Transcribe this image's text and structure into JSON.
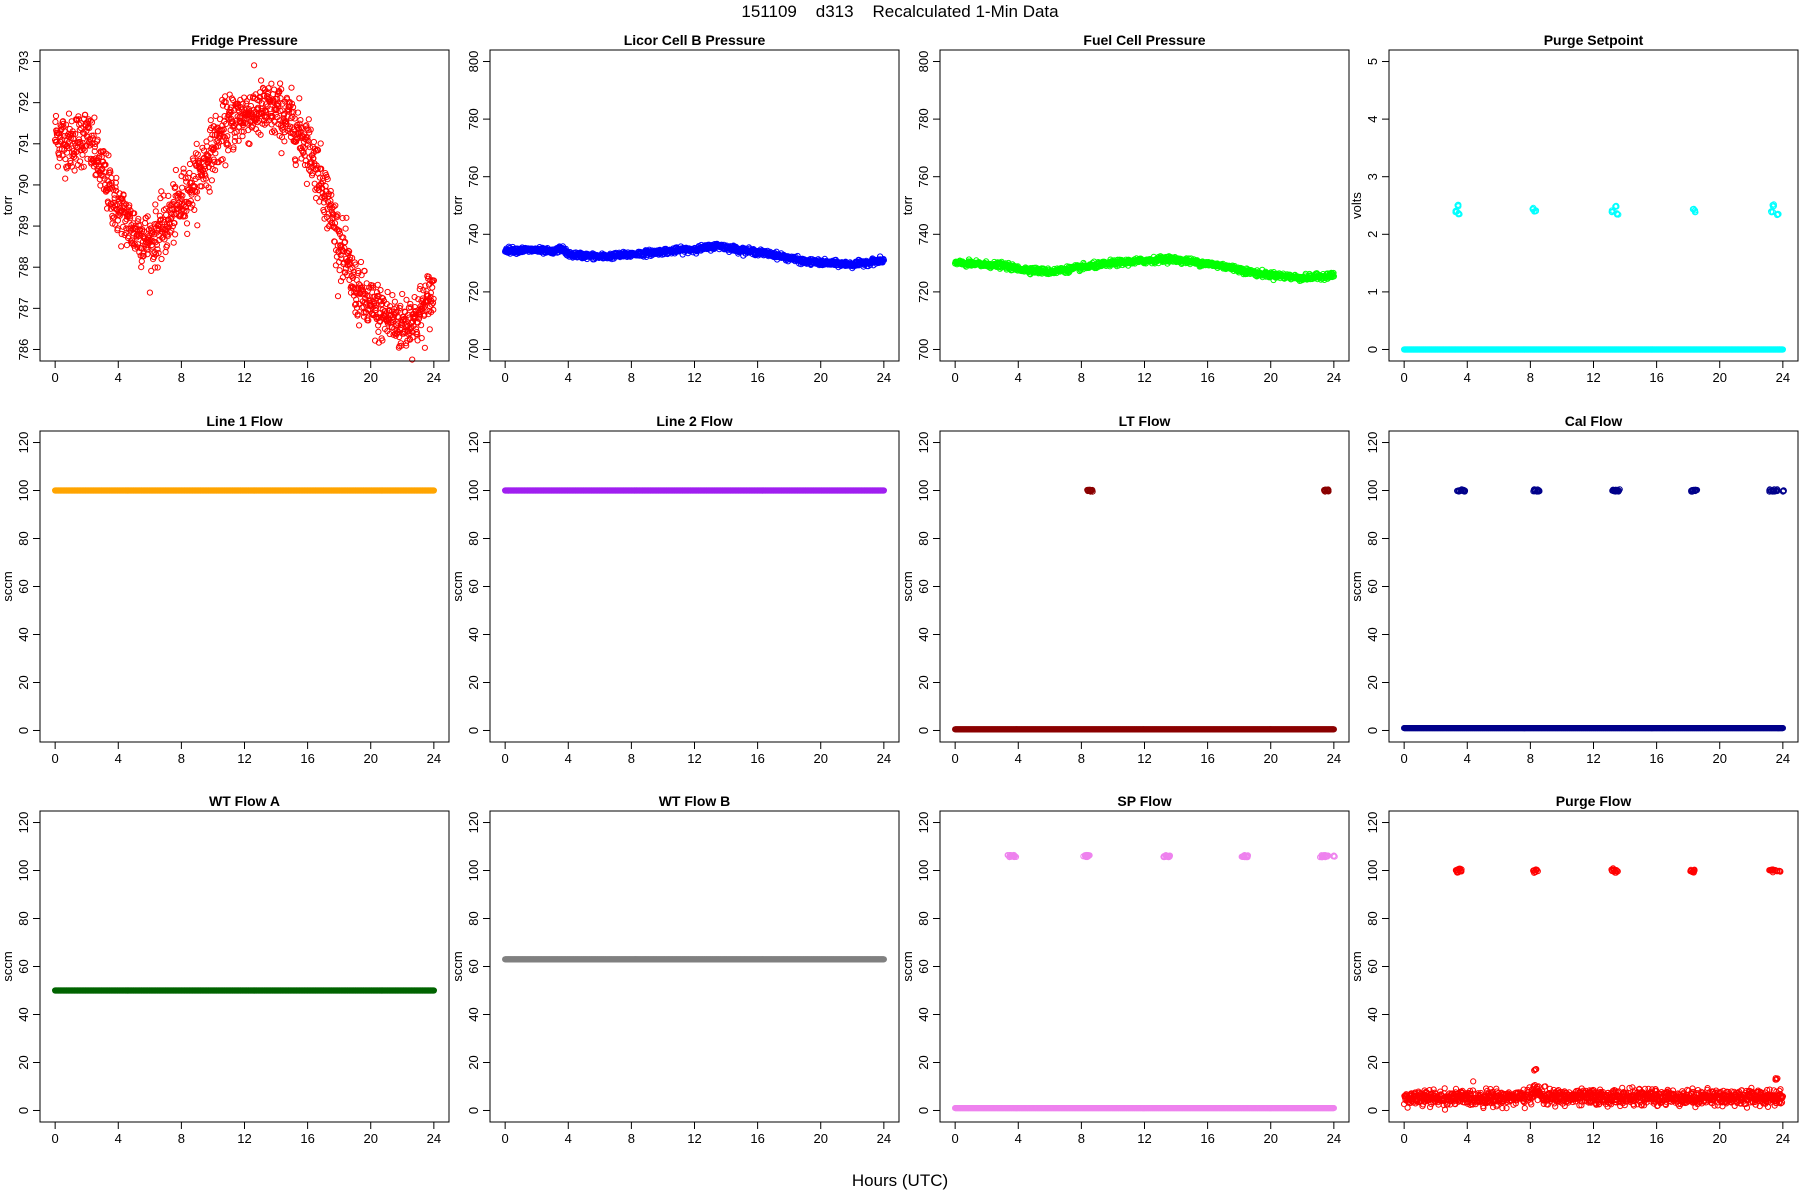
{
  "title": "151109    d313    Recalculated 1-Min Data",
  "xlabel": "Hours (UTC)",
  "chart_data": [
    {
      "type": "scatter",
      "title": "Fridge Pressure",
      "ylabel": "torr",
      "color": "#ff0000",
      "xlim": [
        0,
        24
      ],
      "ylim": [
        786,
        793
      ],
      "xticks": [
        0,
        4,
        8,
        12,
        16,
        20,
        24
      ],
      "yticks": [
        786,
        787,
        788,
        789,
        790,
        791,
        792,
        793
      ],
      "noise": 0.35,
      "series": [
        {
          "curve": [
            [
              0,
              791.2
            ],
            [
              1,
              791.0
            ],
            [
              2,
              791.2
            ],
            [
              3,
              790.3
            ],
            [
              4,
              789.4
            ],
            [
              5,
              788.9
            ],
            [
              6,
              788.6
            ],
            [
              7,
              789.0
            ],
            [
              8,
              789.6
            ],
            [
              9,
              790.2
            ],
            [
              10,
              790.9
            ],
            [
              11,
              791.5
            ],
            [
              12,
              791.7
            ],
            [
              13,
              791.8
            ],
            [
              14,
              791.8
            ],
            [
              15,
              791.5
            ],
            [
              16,
              791.0
            ],
            [
              17,
              790.0
            ],
            [
              18,
              788.6
            ],
            [
              19,
              787.5
            ],
            [
              20,
              787.0
            ],
            [
              21,
              786.8
            ],
            [
              22,
              786.6
            ],
            [
              23,
              786.8
            ],
            [
              24,
              787.4
            ]
          ],
          "n": 1400
        }
      ]
    },
    {
      "type": "scatter",
      "title": "Licor Cell B Pressure",
      "ylabel": "torr",
      "color": "#0000ff",
      "xlim": [
        0,
        24
      ],
      "ylim": [
        700,
        800
      ],
      "xticks": [
        0,
        4,
        8,
        12,
        16,
        20,
        24
      ],
      "yticks": [
        700,
        720,
        740,
        760,
        780,
        800
      ],
      "noise": 0.5,
      "series": [
        {
          "curve": [
            [
              0,
              734.5
            ],
            [
              2,
              734.5
            ],
            [
              3,
              733.8
            ],
            [
              3.6,
              735.2
            ],
            [
              4,
              733
            ],
            [
              6,
              732.2
            ],
            [
              8,
              733
            ],
            [
              10,
              734
            ],
            [
              12,
              734.8
            ],
            [
              13.5,
              736
            ],
            [
              15,
              734.5
            ],
            [
              17,
              733
            ],
            [
              19,
              730.5
            ],
            [
              22,
              729.5
            ],
            [
              24,
              731
            ]
          ],
          "n": 1200
        }
      ]
    },
    {
      "type": "scatter",
      "title": "Fuel Cell Pressure",
      "ylabel": "torr",
      "color": "#00ff00",
      "xlim": [
        0,
        24
      ],
      "ylim": [
        700,
        800
      ],
      "xticks": [
        0,
        4,
        8,
        12,
        16,
        20,
        24
      ],
      "yticks": [
        700,
        720,
        740,
        760,
        780,
        800
      ],
      "noise": 0.5,
      "series": [
        {
          "curve": [
            [
              0,
              730
            ],
            [
              3,
              729.2
            ],
            [
              4,
              728
            ],
            [
              6,
              727
            ],
            [
              8,
              728.5
            ],
            [
              10,
              730
            ],
            [
              12,
              730.8
            ],
            [
              13.5,
              731.5
            ],
            [
              15,
              730.5
            ],
            [
              17,
              729
            ],
            [
              19,
              726.5
            ],
            [
              22,
              724.8
            ],
            [
              24,
              725.8
            ]
          ],
          "n": 1200
        }
      ]
    },
    {
      "type": "scatter",
      "title": "Purge Setpoint",
      "ylabel": "volts",
      "color": "#00ffff",
      "xlim": [
        0,
        24
      ],
      "ylim": [
        0,
        5
      ],
      "xticks": [
        0,
        4,
        8,
        12,
        16,
        20,
        24
      ],
      "yticks": [
        0,
        1,
        2,
        3,
        4,
        5
      ],
      "noise": 0.04,
      "series": [
        {
          "curve": [
            [
              0,
              0
            ],
            [
              24,
              0
            ]
          ],
          "n": 1200,
          "noise": 0
        },
        {
          "points": [
            [
              3.3,
              2.4
            ],
            [
              3.4,
              2.5
            ],
            [
              3.5,
              2.35
            ],
            [
              8.2,
              2.45
            ],
            [
              8.3,
              2.4
            ],
            [
              13.2,
              2.4
            ],
            [
              13.4,
              2.5
            ],
            [
              13.5,
              2.35
            ],
            [
              18.3,
              2.45
            ],
            [
              18.4,
              2.4
            ],
            [
              23.3,
              2.4
            ],
            [
              23.4,
              2.5
            ],
            [
              23.7,
              2.35
            ]
          ]
        }
      ]
    },
    {
      "type": "scatter",
      "title": "Line 1 Flow",
      "ylabel": "sccm",
      "color": "#ffa500",
      "xlim": [
        0,
        24
      ],
      "ylim": [
        0,
        120
      ],
      "xticks": [
        0,
        4,
        8,
        12,
        16,
        20,
        24
      ],
      "yticks": [
        0,
        20,
        40,
        60,
        80,
        100,
        120
      ],
      "noise": 0,
      "series": [
        {
          "curve": [
            [
              0,
              100
            ],
            [
              24,
              100
            ]
          ],
          "n": 900
        }
      ]
    },
    {
      "type": "scatter",
      "title": "Line 2 Flow",
      "ylabel": "sccm",
      "color": "#a020f0",
      "xlim": [
        0,
        24
      ],
      "ylim": [
        0,
        120
      ],
      "xticks": [
        0,
        4,
        8,
        12,
        16,
        20,
        24
      ],
      "yticks": [
        0,
        20,
        40,
        60,
        80,
        100,
        120
      ],
      "noise": 0,
      "series": [
        {
          "curve": [
            [
              0,
              100
            ],
            [
              24,
              100
            ]
          ],
          "n": 900
        }
      ]
    },
    {
      "type": "scatter",
      "title": "LT Flow",
      "ylabel": "sccm",
      "color": "#8b0000",
      "xlim": [
        0,
        24
      ],
      "ylim": [
        0,
        120
      ],
      "xticks": [
        0,
        4,
        8,
        12,
        16,
        20,
        24
      ],
      "yticks": [
        0,
        20,
        40,
        60,
        80,
        100,
        120
      ],
      "noise": 0,
      "series": [
        {
          "curve": [
            [
              0,
              0.5
            ],
            [
              24,
              0.5
            ]
          ],
          "n": 900
        },
        {
          "points": [
            [
              8.4,
              100
            ],
            [
              8.5,
              100
            ],
            [
              8.6,
              100
            ],
            [
              8.7,
              100
            ],
            [
              23.4,
              100
            ],
            [
              23.5,
              100
            ],
            [
              23.6,
              100
            ],
            [
              23.7,
              100
            ]
          ]
        }
      ]
    },
    {
      "type": "scatter",
      "title": "Cal Flow",
      "ylabel": "sccm",
      "color": "#00008b",
      "xlim": [
        0,
        24
      ],
      "ylim": [
        0,
        120
      ],
      "xticks": [
        0,
        4,
        8,
        12,
        16,
        20,
        24
      ],
      "yticks": [
        0,
        20,
        40,
        60,
        80,
        100,
        120
      ],
      "noise": 0,
      "series": [
        {
          "curve": [
            [
              0,
              1
            ],
            [
              24,
              1
            ]
          ],
          "n": 900
        },
        {
          "points": [
            [
              3.4,
              100
            ],
            [
              3.5,
              100
            ],
            [
              3.6,
              100
            ],
            [
              3.7,
              100
            ],
            [
              3.8,
              100
            ],
            [
              8.2,
              100
            ],
            [
              8.3,
              100
            ],
            [
              8.4,
              100
            ],
            [
              8.5,
              100
            ],
            [
              13.2,
              100
            ],
            [
              13.3,
              100
            ],
            [
              13.4,
              100
            ],
            [
              13.5,
              100
            ],
            [
              13.6,
              100
            ],
            [
              18.2,
              100
            ],
            [
              18.3,
              100
            ],
            [
              18.4,
              100
            ],
            [
              18.5,
              100
            ],
            [
              23.2,
              100
            ],
            [
              23.3,
              100
            ],
            [
              23.4,
              100
            ],
            [
              23.5,
              100
            ],
            [
              23.6,
              100
            ],
            [
              24,
              100
            ]
          ]
        }
      ]
    },
    {
      "type": "scatter",
      "title": "WT Flow A",
      "ylabel": "sccm",
      "color": "#006400",
      "xlim": [
        0,
        24
      ],
      "ylim": [
        0,
        120
      ],
      "xticks": [
        0,
        4,
        8,
        12,
        16,
        20,
        24
      ],
      "yticks": [
        0,
        20,
        40,
        60,
        80,
        100,
        120
      ],
      "noise": 0,
      "series": [
        {
          "curve": [
            [
              0,
              50
            ],
            [
              24,
              50
            ]
          ],
          "n": 900
        }
      ]
    },
    {
      "type": "scatter",
      "title": "WT Flow B",
      "ylabel": "sccm",
      "color": "#808080",
      "xlim": [
        0,
        24
      ],
      "ylim": [
        0,
        120
      ],
      "xticks": [
        0,
        4,
        8,
        12,
        16,
        20,
        24
      ],
      "yticks": [
        0,
        20,
        40,
        60,
        80,
        100,
        120
      ],
      "noise": 0,
      "series": [
        {
          "curve": [
            [
              0,
              63
            ],
            [
              24,
              63
            ]
          ],
          "n": 900
        }
      ]
    },
    {
      "type": "scatter",
      "title": "SP Flow",
      "ylabel": "sccm",
      "color": "#ee82ee",
      "xlim": [
        0,
        24
      ],
      "ylim": [
        0,
        120
      ],
      "xticks": [
        0,
        4,
        8,
        12,
        16,
        20,
        24
      ],
      "yticks": [
        0,
        20,
        40,
        60,
        80,
        100,
        120
      ],
      "noise": 0,
      "series": [
        {
          "curve": [
            [
              0,
              1
            ],
            [
              24,
              1
            ]
          ],
          "n": 900
        },
        {
          "points": [
            [
              3.4,
              106
            ],
            [
              3.5,
              106
            ],
            [
              3.6,
              106
            ],
            [
              3.7,
              106
            ],
            [
              3.8,
              106
            ],
            [
              8.2,
              106
            ],
            [
              8.3,
              106
            ],
            [
              8.4,
              106
            ],
            [
              8.5,
              106
            ],
            [
              13.2,
              106
            ],
            [
              13.3,
              106
            ],
            [
              13.4,
              106
            ],
            [
              13.5,
              106
            ],
            [
              13.6,
              106
            ],
            [
              18.2,
              106
            ],
            [
              18.3,
              106
            ],
            [
              18.4,
              106
            ],
            [
              18.5,
              106
            ],
            [
              23.2,
              106
            ],
            [
              23.3,
              106
            ],
            [
              23.4,
              106
            ],
            [
              23.5,
              106
            ],
            [
              23.6,
              106
            ],
            [
              24,
              106
            ]
          ]
        }
      ]
    },
    {
      "type": "scatter",
      "title": "Purge Flow",
      "ylabel": "sccm",
      "color": "#ff0000",
      "xlim": [
        0,
        24
      ],
      "ylim": [
        0,
        120
      ],
      "xticks": [
        0,
        4,
        8,
        12,
        16,
        20,
        24
      ],
      "yticks": [
        0,
        20,
        40,
        60,
        80,
        100,
        120
      ],
      "noise": 1.6,
      "series": [
        {
          "curve": [
            [
              0,
              5
            ],
            [
              8,
              5.5
            ],
            [
              8.2,
              9
            ],
            [
              8.5,
              7
            ],
            [
              9,
              5.5
            ],
            [
              24,
              5.5
            ]
          ],
          "n": 1300
        },
        {
          "points": [
            [
              3.3,
              100
            ],
            [
              3.4,
              99.5
            ],
            [
              3.5,
              100.5
            ],
            [
              3.6,
              100
            ],
            [
              8.2,
              100
            ],
            [
              8.3,
              99.5
            ],
            [
              8.4,
              100
            ],
            [
              13.2,
              100
            ],
            [
              13.3,
              100.5
            ],
            [
              13.4,
              99.5
            ],
            [
              13.5,
              100
            ],
            [
              18.2,
              100
            ],
            [
              18.3,
              99.5
            ],
            [
              18.4,
              100
            ],
            [
              23.2,
              100
            ],
            [
              23.3,
              100.5
            ],
            [
              23.4,
              99.5
            ],
            [
              23.6,
              100
            ],
            [
              23.8,
              99.5
            ],
            [
              8.3,
              17
            ],
            [
              23.6,
              13
            ]
          ]
        }
      ]
    }
  ]
}
